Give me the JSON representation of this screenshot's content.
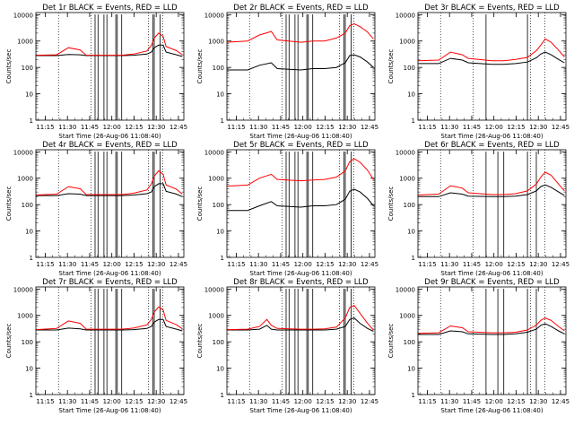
{
  "chart_data": [
    {
      "type": "line",
      "title": "Det 1r  BLACK = Events, RED = LLD",
      "xlabel": "Start Time (26-Aug-06 11:08:40)",
      "ylabel": "Counts/sec",
      "x_ticks": [
        "11:15",
        "11:30",
        "11:45",
        "12:00",
        "12:15",
        "12:30",
        "12:45"
      ],
      "y_ticks": [
        "1",
        "10",
        "100",
        "1000",
        "10000"
      ],
      "y_scale": "log",
      "ylim": [
        1,
        12000
      ],
      "xlim_minutes": [
        0,
        100
      ],
      "series": [
        {
          "name": "Events",
          "color": "#000000",
          "x": [
            0,
            14,
            22,
            30,
            34,
            50,
            58,
            66,
            75,
            78,
            80,
            83,
            86,
            88,
            95,
            99
          ],
          "y": [
            280,
            280,
            310,
            300,
            280,
            280,
            280,
            290,
            320,
            380,
            560,
            700,
            700,
            380,
            300,
            260
          ]
        },
        {
          "name": "LLD",
          "color": "#ff0000",
          "x": [
            0,
            14,
            22,
            30,
            34,
            50,
            58,
            66,
            75,
            78,
            80,
            83,
            86,
            88,
            95,
            99
          ],
          "y": [
            290,
            300,
            560,
            460,
            290,
            290,
            290,
            320,
            420,
            680,
            1300,
            2000,
            1500,
            620,
            430,
            300
          ]
        }
      ],
      "spikes_minutes": [
        40,
        42,
        46,
        48,
        54,
        55,
        58,
        79,
        80,
        84
      ]
    },
    {
      "type": "line",
      "title": "Det 2r  BLACK = Events, RED = LLD",
      "xlabel": "Start Time (26-Aug-06 11:08:40)",
      "ylabel": "Counts/sec",
      "x_ticks": [
        "11:15",
        "11:30",
        "11:45",
        "12:00",
        "12:15",
        "12:30",
        "12:45"
      ],
      "y_ticks": [
        "1",
        "10",
        "100",
        "1000",
        "10000"
      ],
      "y_scale": "log",
      "ylim": [
        1,
        12000
      ],
      "xlim_minutes": [
        0,
        100
      ],
      "series": [
        {
          "name": "Events",
          "color": "#000000",
          "x": [
            0,
            14,
            22,
            30,
            34,
            50,
            58,
            66,
            74,
            80,
            83,
            86,
            90,
            95,
            99
          ],
          "y": [
            80,
            80,
            120,
            150,
            90,
            80,
            90,
            90,
            100,
            150,
            280,
            300,
            250,
            160,
            100
          ]
        },
        {
          "name": "LLD",
          "color": "#ff0000",
          "x": [
            0,
            14,
            22,
            30,
            34,
            50,
            58,
            66,
            74,
            80,
            83,
            86,
            90,
            95,
            99
          ],
          "y": [
            900,
            1000,
            1700,
            2300,
            1100,
            900,
            1000,
            1000,
            1300,
            2000,
            3800,
            4500,
            3500,
            2200,
            1200
          ]
        }
      ],
      "spikes_minutes": [
        40,
        42,
        46,
        48,
        54,
        55,
        58,
        79,
        80,
        84
      ]
    },
    {
      "type": "line",
      "title": "Det 3r  BLACK = Events, RED = LLD",
      "xlabel": "Start Time (26-Aug-06 11:08:40)",
      "ylabel": "Counts/sec",
      "x_ticks": [
        "11:15",
        "11:30",
        "11:45",
        "12:00",
        "12:15",
        "12:30",
        "12:45"
      ],
      "y_ticks": [
        "1",
        "10",
        "100",
        "1000",
        "10000"
      ],
      "y_scale": "log",
      "ylim": [
        1,
        12000
      ],
      "xlim_minutes": [
        0,
        100
      ],
      "series": [
        {
          "name": "Events",
          "color": "#000000",
          "x": [
            0,
            14,
            22,
            30,
            34,
            50,
            58,
            66,
            74,
            80,
            83,
            86,
            90,
            95,
            99
          ],
          "y": [
            140,
            140,
            220,
            190,
            150,
            130,
            130,
            140,
            160,
            230,
            320,
            380,
            300,
            200,
            150
          ]
        },
        {
          "name": "LLD",
          "color": "#ff0000",
          "x": [
            0,
            14,
            22,
            30,
            34,
            50,
            58,
            66,
            74,
            80,
            83,
            86,
            90,
            95,
            99
          ],
          "y": [
            180,
            190,
            380,
            300,
            220,
            180,
            180,
            200,
            240,
            430,
            700,
            1200,
            900,
            450,
            250
          ]
        }
      ],
      "spikes_minutes": [
        46,
        74
      ]
    },
    {
      "type": "line",
      "title": "Det 4r  BLACK = Events, RED = LLD",
      "xlabel": "Start Time (26-Aug-06 11:08:40)",
      "ylabel": "Counts/sec",
      "x_ticks": [
        "11:15",
        "11:30",
        "11:45",
        "12:00",
        "12:15",
        "12:30",
        "12:45"
      ],
      "y_ticks": [
        "1",
        "10",
        "100",
        "1000",
        "10000"
      ],
      "y_scale": "log",
      "ylim": [
        1,
        12000
      ],
      "xlim_minutes": [
        0,
        100
      ],
      "series": [
        {
          "name": "Events",
          "color": "#000000",
          "x": [
            0,
            14,
            22,
            30,
            34,
            50,
            58,
            66,
            75,
            78,
            80,
            83,
            86,
            88,
            95,
            99
          ],
          "y": [
            220,
            220,
            260,
            250,
            220,
            220,
            220,
            230,
            260,
            300,
            480,
            620,
            620,
            320,
            250,
            200
          ]
        },
        {
          "name": "LLD",
          "color": "#ff0000",
          "x": [
            0,
            14,
            22,
            30,
            34,
            50,
            58,
            66,
            75,
            78,
            80,
            83,
            86,
            88,
            95,
            99
          ],
          "y": [
            230,
            250,
            480,
            400,
            240,
            240,
            240,
            270,
            360,
            600,
            1200,
            1900,
            1400,
            560,
            380,
            250
          ]
        }
      ],
      "spikes_minutes": [
        40,
        42,
        46,
        48,
        54,
        55,
        58,
        79,
        80,
        84
      ]
    },
    {
      "type": "line",
      "title": "Det 5r  BLACK = Events, RED = LLD",
      "xlabel": "Start Time (26-Aug-06 11:08:40)",
      "ylabel": "Counts/sec",
      "x_ticks": [
        "11:15",
        "11:30",
        "11:45",
        "12:00",
        "12:15",
        "12:30",
        "12:45"
      ],
      "y_ticks": [
        "1",
        "10",
        "100",
        "1000",
        "10000"
      ],
      "y_scale": "log",
      "ylim": [
        1,
        12000
      ],
      "xlim_minutes": [
        0,
        100
      ],
      "series": [
        {
          "name": "Events",
          "color": "#000000",
          "x": [
            0,
            14,
            22,
            30,
            34,
            50,
            58,
            66,
            74,
            80,
            83,
            86,
            90,
            95,
            99
          ],
          "y": [
            60,
            60,
            90,
            130,
            90,
            80,
            90,
            90,
            100,
            160,
            320,
            380,
            300,
            170,
            90
          ]
        },
        {
          "name": "LLD",
          "color": "#ff0000",
          "x": [
            0,
            14,
            22,
            30,
            34,
            50,
            58,
            66,
            74,
            80,
            83,
            86,
            90,
            95,
            99
          ],
          "y": [
            500,
            550,
            1000,
            1400,
            900,
            800,
            850,
            900,
            1100,
            1900,
            4200,
            5500,
            4000,
            2000,
            900
          ]
        }
      ],
      "spikes_minutes": [
        40,
        42,
        46,
        48,
        54,
        55,
        58,
        79,
        80,
        84
      ]
    },
    {
      "type": "line",
      "title": "Det 6r  BLACK = Events, RED = LLD",
      "xlabel": "Start Time (26-Aug-06 11:08:40)",
      "ylabel": "Counts/sec",
      "x_ticks": [
        "11:15",
        "11:30",
        "11:45",
        "12:00",
        "12:15",
        "12:30",
        "12:45"
      ],
      "y_ticks": [
        "1",
        "10",
        "100",
        "1000",
        "10000"
      ],
      "y_scale": "log",
      "ylim": [
        1,
        12000
      ],
      "xlim_minutes": [
        0,
        100
      ],
      "series": [
        {
          "name": "Events",
          "color": "#000000",
          "x": [
            0,
            14,
            22,
            30,
            34,
            50,
            58,
            66,
            74,
            80,
            83,
            86,
            90,
            95,
            99
          ],
          "y": [
            200,
            200,
            280,
            250,
            210,
            200,
            200,
            210,
            240,
            330,
            480,
            560,
            450,
            300,
            220
          ]
        },
        {
          "name": "LLD",
          "color": "#ff0000",
          "x": [
            0,
            14,
            22,
            30,
            34,
            50,
            58,
            66,
            74,
            80,
            83,
            86,
            90,
            95,
            99
          ],
          "y": [
            230,
            250,
            520,
            420,
            280,
            240,
            240,
            260,
            330,
            600,
            1100,
            1700,
            1300,
            600,
            330
          ]
        }
      ],
      "spikes_minutes": [
        46,
        54,
        58,
        74,
        80
      ]
    },
    {
      "type": "line",
      "title": "Det 7r  BLACK = Events, RED = LLD",
      "xlabel": "Start Time (26-Aug-06 11:08:40)",
      "ylabel": "Counts/sec",
      "x_ticks": [
        "11:15",
        "11:30",
        "11:45",
        "12:00",
        "12:15",
        "12:30",
        "12:45"
      ],
      "y_ticks": [
        "1",
        "10",
        "100",
        "1000",
        "10000"
      ],
      "y_scale": "log",
      "ylim": [
        1,
        12000
      ],
      "xlim_minutes": [
        0,
        100
      ],
      "series": [
        {
          "name": "Events",
          "color": "#000000",
          "x": [
            0,
            14,
            22,
            30,
            34,
            50,
            58,
            66,
            75,
            78,
            80,
            83,
            86,
            88,
            95,
            99
          ],
          "y": [
            280,
            280,
            330,
            310,
            280,
            280,
            280,
            290,
            320,
            380,
            560,
            700,
            700,
            380,
            300,
            260
          ]
        },
        {
          "name": "LLD",
          "color": "#ff0000",
          "x": [
            0,
            14,
            22,
            30,
            34,
            50,
            58,
            66,
            75,
            78,
            80,
            83,
            86,
            88,
            95,
            99
          ],
          "y": [
            290,
            320,
            620,
            500,
            300,
            300,
            300,
            330,
            440,
            700,
            1350,
            2100,
            1600,
            650,
            440,
            310
          ]
        }
      ],
      "spikes_minutes": [
        40,
        42,
        46,
        48,
        54,
        55,
        58,
        79,
        80,
        84
      ]
    },
    {
      "type": "line",
      "title": "Det 8r  BLACK = Events, RED = LLD",
      "xlabel": "Start Time (26-Aug-06 11:08:40)",
      "ylabel": "Counts/sec",
      "x_ticks": [
        "11:15",
        "11:30",
        "11:45",
        "12:00",
        "12:15",
        "12:30",
        "12:45"
      ],
      "y_ticks": [
        "1",
        "10",
        "100",
        "1000",
        "10000"
      ],
      "y_scale": "log",
      "ylim": [
        1,
        12000
      ],
      "xlim_minutes": [
        0,
        100
      ],
      "series": [
        {
          "name": "Events",
          "color": "#000000",
          "x": [
            0,
            14,
            22,
            27,
            30,
            34,
            50,
            58,
            66,
            74,
            80,
            83,
            86,
            90,
            95,
            99
          ],
          "y": [
            280,
            280,
            300,
            420,
            300,
            280,
            280,
            280,
            280,
            300,
            380,
            700,
            800,
            500,
            320,
            250
          ]
        },
        {
          "name": "LLD",
          "color": "#ff0000",
          "x": [
            0,
            14,
            22,
            27,
            30,
            34,
            50,
            58,
            66,
            74,
            80,
            83,
            86,
            90,
            95,
            99
          ],
          "y": [
            290,
            300,
            380,
            700,
            420,
            320,
            300,
            300,
            310,
            360,
            800,
            2000,
            2400,
            1200,
            500,
            280
          ]
        }
      ],
      "spikes_minutes": [
        40,
        42,
        46,
        48,
        54,
        55,
        58,
        79,
        80,
        84
      ]
    },
    {
      "type": "line",
      "title": "Det 9r  BLACK = Events, RED = LLD",
      "xlabel": "Start Time (26-Aug-06 11:08:40)",
      "ylabel": "Counts/sec",
      "x_ticks": [
        "11:15",
        "11:30",
        "11:45",
        "12:00",
        "12:15",
        "12:30",
        "12:45"
      ],
      "y_ticks": [
        "1",
        "10",
        "100",
        "1000",
        "10000"
      ],
      "y_scale": "log",
      "ylim": [
        1,
        12000
      ],
      "xlim_minutes": [
        0,
        100
      ],
      "series": [
        {
          "name": "Events",
          "color": "#000000",
          "x": [
            0,
            14,
            22,
            30,
            34,
            50,
            58,
            66,
            74,
            80,
            83,
            86,
            90,
            95,
            99
          ],
          "y": [
            190,
            190,
            260,
            240,
            200,
            190,
            190,
            200,
            230,
            300,
            420,
            480,
            380,
            260,
            200
          ]
        },
        {
          "name": "LLD",
          "color": "#ff0000",
          "x": [
            0,
            14,
            22,
            30,
            34,
            50,
            58,
            66,
            74,
            80,
            83,
            86,
            90,
            95,
            99
          ],
          "y": [
            210,
            220,
            400,
            340,
            240,
            220,
            220,
            230,
            280,
            430,
            650,
            800,
            650,
            380,
            260
          ]
        }
      ],
      "spikes_minutes": [
        46,
        54,
        58,
        74,
        80
      ]
    }
  ]
}
